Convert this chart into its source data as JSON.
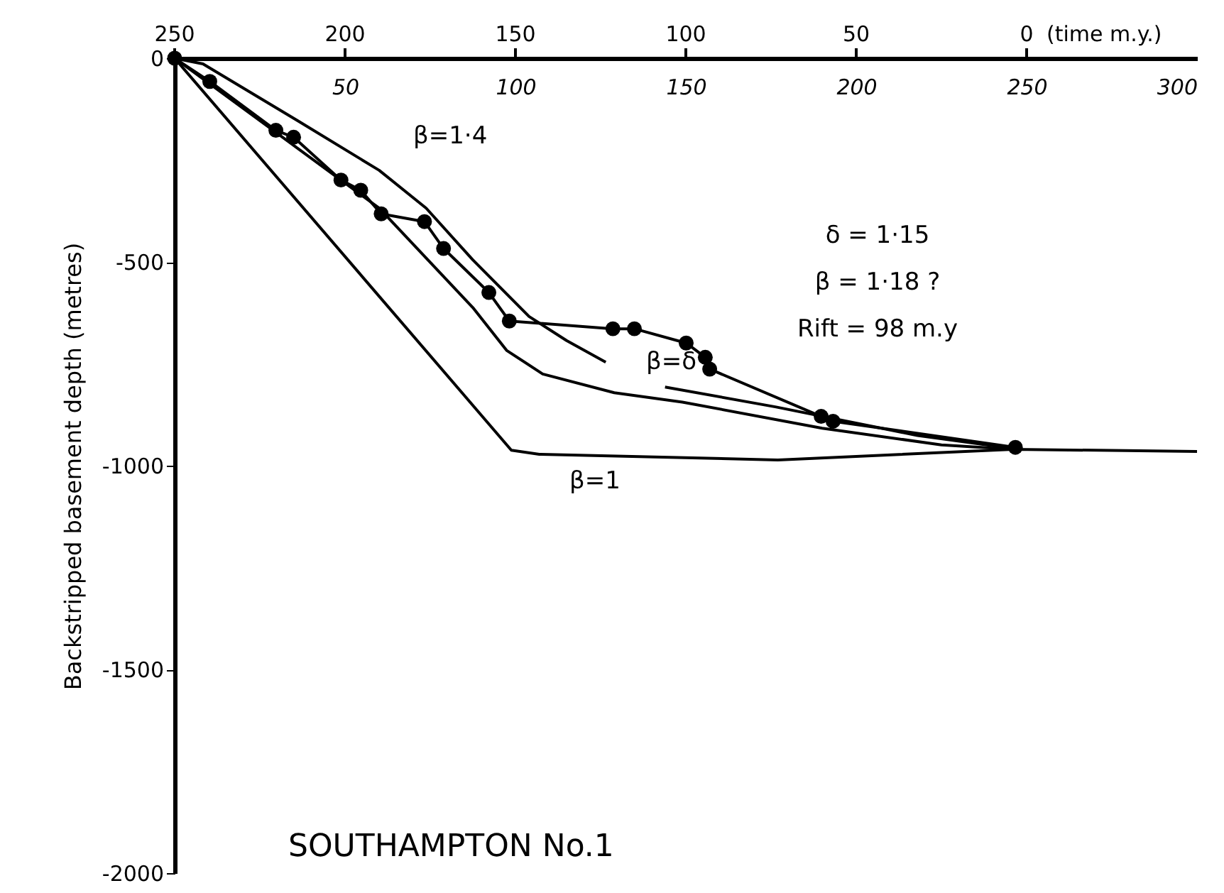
{
  "chart_data": {
    "type": "line",
    "title": "SOUTHAMPTON  No.1",
    "ylabel": "Backstripped basement depth (metres)",
    "x2label": "(time m.y.)",
    "xlim": [
      0,
      300
    ],
    "xticks": [
      50,
      100,
      150,
      200,
      250,
      300
    ],
    "x2lim": [
      250,
      -50
    ],
    "x2ticks": [
      250,
      200,
      150,
      100,
      50,
      0
    ],
    "grid": false,
    "ylim": [
      -2000,
      0
    ],
    "yticks": [
      0,
      -500,
      -1000,
      -1500,
      -2000
    ],
    "series": [
      {
        "color": "#000000",
        "marker": "circle",
        "x": [
          0,
          10.3,
          29.7,
          34.9,
          48.8,
          54.6,
          60.6,
          73.3,
          78.9,
          92.2,
          98.2,
          128.6,
          134.9,
          150.1,
          155.7,
          157,
          189.7,
          193.2,
          246.7
        ],
        "values": [
          0,
          -57,
          -177,
          -194,
          -299,
          -324,
          -382,
          -401,
          -467,
          -575,
          -645,
          -664,
          -664,
          -699,
          -734,
          -763,
          -879,
          -891,
          -955
        ]
      },
      {
        "color": "#000000",
        "marker": "none",
        "x": [
          0,
          8.3,
          36,
          60,
          73.8,
          87.5,
          104,
          115,
          126.5,
          135,
          143.9,
          176.5,
          218,
          246
        ],
        "values": [
          0,
          -14,
          -153,
          -275,
          -368,
          -495,
          -634,
          -693,
          -746,
          null,
          -807,
          -856,
          -926,
          -958
        ]
      },
      {
        "color": "#000000",
        "marker": "none",
        "x": [
          0,
          25,
          60,
          87.5,
          97.4,
          108,
          129,
          149,
          190,
          225,
          246
        ],
        "values": [
          0,
          -153,
          -368,
          -612,
          -717,
          -775,
          -821,
          -844,
          -908,
          -949,
          -960
        ]
      },
      {
        "color": "#000000",
        "marker": "none",
        "x": [
          0,
          98.8,
          107,
          177,
          246,
          300
        ],
        "values": [
          0,
          -962,
          -972,
          -986,
          -960,
          -965
        ]
      }
    ],
    "annotations": [
      "β=1·4",
      "β=δ",
      "β=1",
      "δ = 1·15",
      "β = 1·18 ?",
      "Rift = 98 m.y"
    ]
  }
}
